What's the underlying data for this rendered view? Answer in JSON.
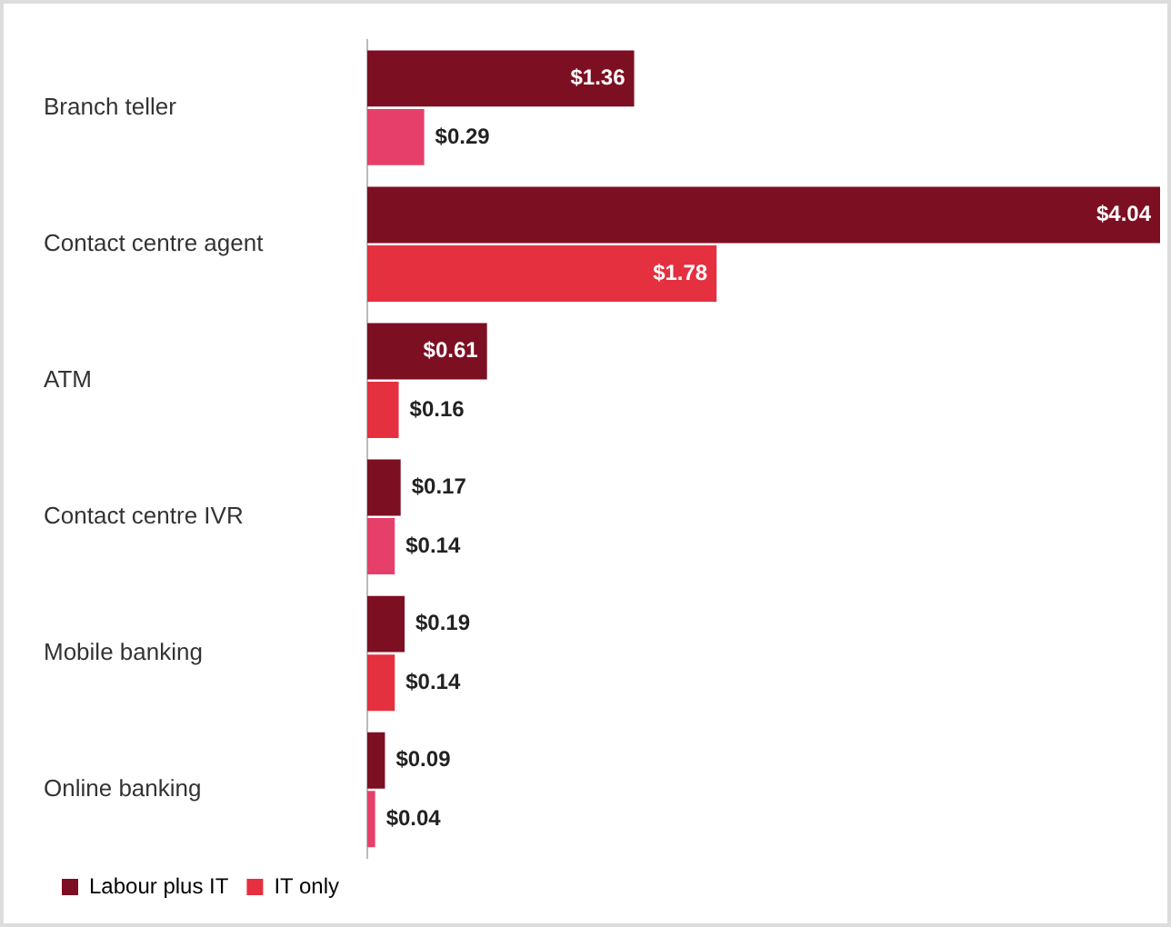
{
  "chart_data": {
    "type": "bar",
    "orientation": "horizontal",
    "categories": [
      "Branch teller",
      "Contact centre agent",
      "ATM",
      "Contact centre IVR",
      "Mobile banking",
      "Online banking"
    ],
    "series": [
      {
        "name": "Labour plus IT",
        "color": "#7d0f22",
        "values": [
          1.36,
          4.04,
          0.61,
          0.17,
          0.19,
          0.09
        ],
        "value_labels": [
          "$1.36",
          "$4.04",
          "$0.61",
          "$0.17",
          "$0.19",
          "$0.09"
        ]
      },
      {
        "name": "IT only",
        "color": "#e4303f",
        "colors": [
          "#e6406a",
          "#e4303f",
          "#e4303f",
          "#e6406a",
          "#e4303f",
          "#e6406a"
        ],
        "values": [
          0.29,
          1.78,
          0.16,
          0.14,
          0.14,
          0.04
        ],
        "value_labels": [
          "$0.29",
          "$1.78",
          "$0.16",
          "$0.14",
          "$0.14",
          "$0.04"
        ]
      }
    ],
    "legend": "bottom left",
    "grid": false
  }
}
